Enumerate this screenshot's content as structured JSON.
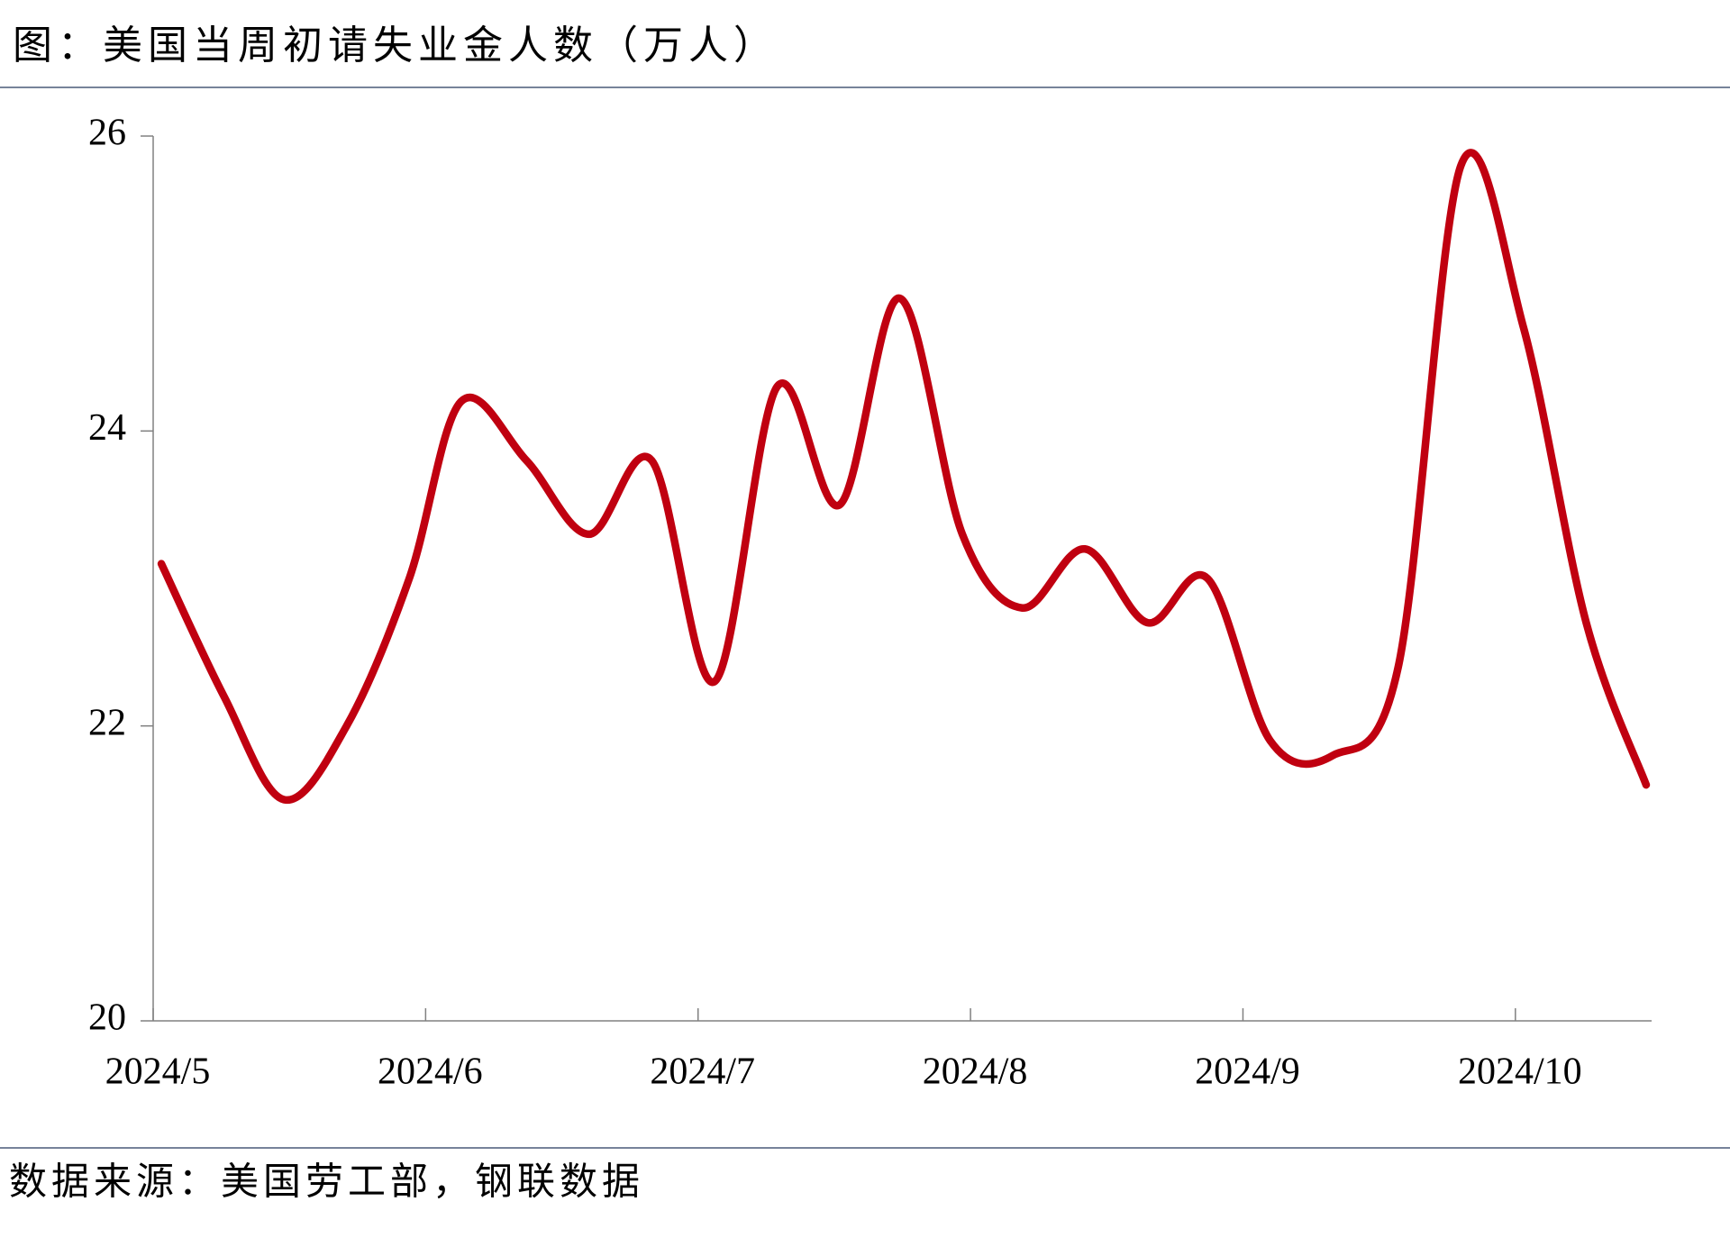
{
  "chart_data": {
    "type": "line",
    "title": "图：美国当周初请失业金人数（万人）",
    "source": "数据来源：美国劳工部，钢联数据",
    "x": [
      5.03,
      5.26,
      5.48,
      5.71,
      5.94,
      6.13,
      6.37,
      6.6,
      6.83,
      7.06,
      7.29,
      7.52,
      7.74,
      7.97,
      8.19,
      8.42,
      8.65,
      8.87,
      9.1,
      9.33,
      9.57,
      9.8,
      10.03,
      10.26,
      10.48
    ],
    "values": [
      23.1,
      22.2,
      21.5,
      22.0,
      23.0,
      24.2,
      23.8,
      23.3,
      23.8,
      22.3,
      24.3,
      23.5,
      24.9,
      23.3,
      22.8,
      23.2,
      22.7,
      23.0,
      21.9,
      21.8,
      22.4,
      25.8,
      24.7,
      22.7,
      21.6
    ],
    "color": "#c00010",
    "smooth": true,
    "xlim": [
      5,
      10.5
    ],
    "xticks": [
      {
        "value": 5,
        "label": "2024/5"
      },
      {
        "value": 6,
        "label": "2024/6"
      },
      {
        "value": 7,
        "label": "2024/7"
      },
      {
        "value": 8,
        "label": "2024/8"
      },
      {
        "value": 9,
        "label": "2024/9"
      },
      {
        "value": 10,
        "label": "2024/10"
      }
    ],
    "ylim": [
      20,
      26
    ],
    "yticks": [
      20,
      22,
      24,
      26
    ],
    "grid": false
  }
}
